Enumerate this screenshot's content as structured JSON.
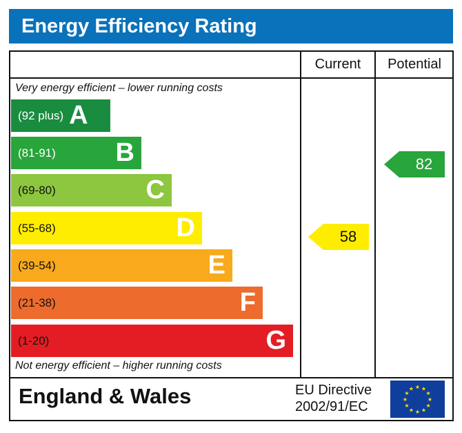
{
  "title": "Energy Efficiency Rating",
  "columns": {
    "current": "Current",
    "potential": "Potential"
  },
  "top_note": "Very energy efficient – lower running costs",
  "bottom_note": "Not energy efficient – higher running costs",
  "footer": {
    "region": "England & Wales",
    "directive_line1": "EU Directive",
    "directive_line2": "2002/91/EC"
  },
  "chart_data": {
    "type": "bar",
    "bands": [
      {
        "letter": "A",
        "range": "(92 plus)",
        "color": "#198c40"
      },
      {
        "letter": "B",
        "range": "(81-91)",
        "color": "#28a53b"
      },
      {
        "letter": "C",
        "range": "(69-80)",
        "color": "#8dc63f"
      },
      {
        "letter": "D",
        "range": "(55-68)",
        "color": "#ffed00"
      },
      {
        "letter": "E",
        "range": "(39-54)",
        "color": "#f9a91c"
      },
      {
        "letter": "F",
        "range": "(21-38)",
        "color": "#ec6b2d"
      },
      {
        "letter": "G",
        "range": "(1-20)",
        "color": "#e31d23"
      }
    ],
    "current": {
      "value": 58,
      "band": "D",
      "color": "#ffed00",
      "label": "58"
    },
    "potential": {
      "value": 82,
      "band": "B",
      "color": "#28a53b",
      "label": "82"
    }
  }
}
